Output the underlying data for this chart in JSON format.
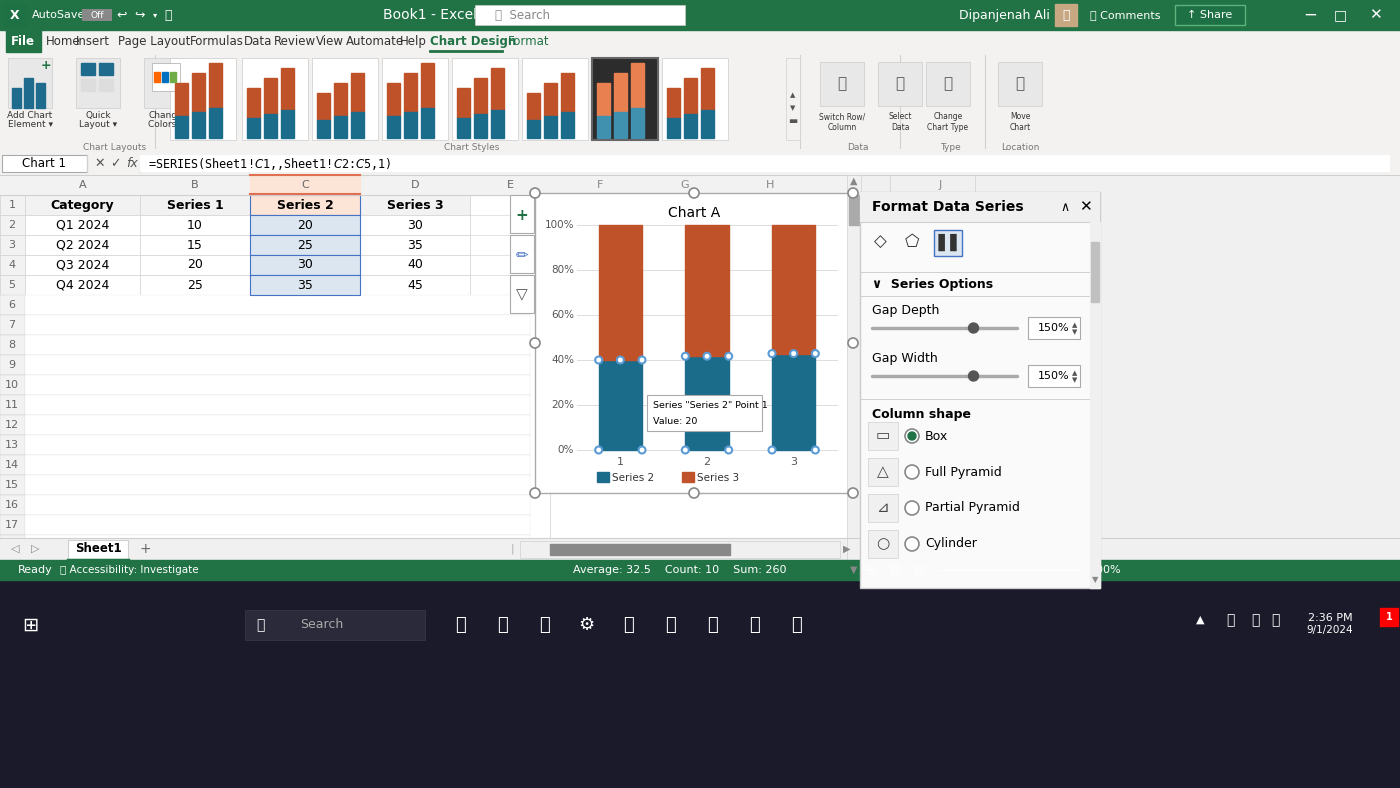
{
  "spreadsheet": {
    "headers": [
      "Category",
      "Series 1",
      "Series 2",
      "Series 3"
    ],
    "rows": [
      [
        "Q1 2024",
        10,
        20,
        30
      ],
      [
        "Q2 2024",
        15,
        25,
        35
      ],
      [
        "Q3 2024",
        20,
        30,
        40
      ],
      [
        "Q4 2024",
        25,
        35,
        45
      ]
    ]
  },
  "chart": {
    "title": "Chart A",
    "series2_color": "#1B6B8A",
    "series3_color": "#C0522A",
    "x_labels": [
      "1",
      "2",
      "3"
    ],
    "legend": [
      "Series 2",
      "Series 3"
    ],
    "tooltip_line1": "Series \"Series 2\" Point 1",
    "tooltip_line2": "Value: 20"
  },
  "format_panel": {
    "title": "Format Data Series",
    "gap_depth": "150%",
    "gap_width": "150%",
    "column_shapes": [
      "Box",
      "Full Pyramid",
      "Partial Pyramid",
      "Cylinder"
    ]
  },
  "formula_bar": "=SERIES(Sheet1!$C$1,,Sheet1!$C$2:$C$5,1)",
  "name_box": "Chart 1",
  "sheet_tab": "Sheet1",
  "colors": {
    "title_bar_green": "#217346",
    "ribbon_bg": "#f3f2f1",
    "tab_strip_bg": "#e8e6e4",
    "cell_bg": "#ffffff",
    "grid": "#d0d0d0",
    "row_header_bg": "#f2f2f2",
    "selected_col_bg": "#fff0ea",
    "selected_cell_blue": "#bdd7ee",
    "panel_bg": "#fafafa",
    "chart_bg": "#ffffff",
    "taskbar_bg": "#1a1a2a"
  }
}
